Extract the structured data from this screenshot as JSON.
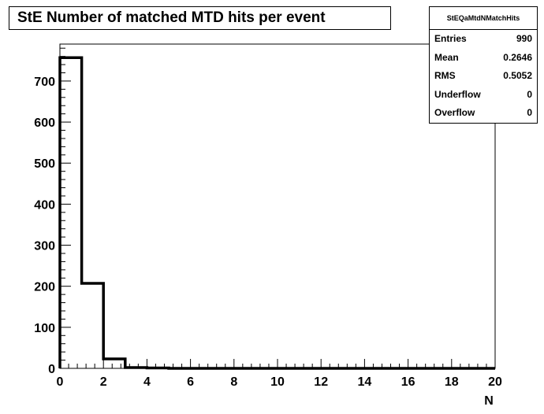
{
  "chart_data": {
    "type": "histogram",
    "title": "StE Number of matched MTD hits per event",
    "xlabel": "N",
    "ylabel": "",
    "xlim": [
      0,
      20
    ],
    "ylim": [
      0,
      790
    ],
    "x_ticks": [
      0,
      2,
      4,
      6,
      8,
      10,
      12,
      14,
      16,
      18,
      20
    ],
    "y_ticks": [
      0,
      100,
      200,
      300,
      400,
      500,
      600,
      700
    ],
    "bin_edges": [
      0,
      1,
      2,
      3,
      4,
      5,
      6,
      7,
      8,
      9,
      10,
      11,
      12,
      13,
      14,
      15,
      16,
      17,
      18,
      19,
      20
    ],
    "values": [
      757,
      207,
      23,
      2,
      1,
      0,
      0,
      0,
      0,
      0,
      0,
      0,
      0,
      0,
      0,
      0,
      0,
      0,
      0,
      0
    ],
    "grid": false,
    "stats": {
      "name": "StEQaMtdNMatchHits",
      "rows": [
        {
          "label": "Entries",
          "value": "990"
        },
        {
          "label": "Mean",
          "value": "0.2646"
        },
        {
          "label": "RMS",
          "value": "0.5052"
        },
        {
          "label": "Underflow",
          "value": "0"
        },
        {
          "label": "Overflow",
          "value": "0"
        }
      ]
    }
  }
}
